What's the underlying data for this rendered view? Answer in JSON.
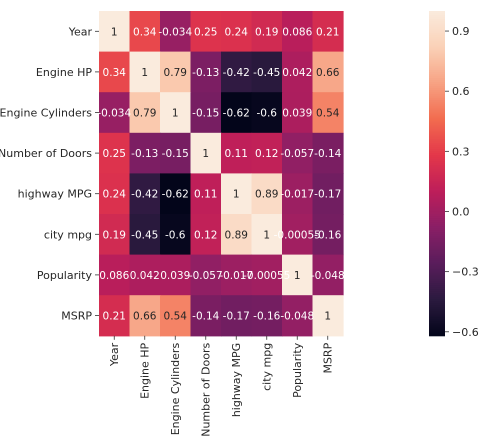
{
  "chart_data": {
    "type": "heatmap",
    "title": "",
    "xlabel": "",
    "ylabel": "",
    "rows": [
      "Year",
      "Engine HP",
      "Engine Cylinders",
      "Number of Doors",
      "highway MPG",
      "city mpg",
      "Popularity",
      "MSRP"
    ],
    "columns": [
      "Year",
      "Engine HP",
      "Engine Cylinders",
      "Number of Doors",
      "highway MPG",
      "city mpg",
      "Popularity",
      "MSRP"
    ],
    "values": [
      [
        1,
        0.34,
        -0.034,
        0.25,
        0.24,
        0.19,
        0.086,
        0.21
      ],
      [
        0.34,
        1,
        0.79,
        -0.13,
        -0.42,
        -0.45,
        0.042,
        0.66
      ],
      [
        -0.034,
        0.79,
        1,
        -0.15,
        -0.62,
        -0.6,
        0.039,
        0.54
      ],
      [
        0.25,
        -0.13,
        -0.15,
        1,
        0.11,
        0.12,
        -0.057,
        -0.14
      ],
      [
        0.24,
        -0.42,
        -0.62,
        0.11,
        1,
        0.89,
        -0.017,
        -0.17
      ],
      [
        0.19,
        -0.45,
        -0.6,
        0.12,
        0.89,
        1,
        -0.00055,
        -0.16
      ],
      [
        0.086,
        0.042,
        0.039,
        -0.057,
        -0.017,
        -0.00055,
        1,
        -0.048
      ],
      [
        0.21,
        0.66,
        0.54,
        -0.14,
        -0.17,
        -0.16,
        -0.048,
        1
      ]
    ],
    "annotations": [
      [
        "1",
        "0.34",
        "-0.034",
        "0.25",
        "0.24",
        "0.19",
        "0.086",
        "0.21"
      ],
      [
        "0.34",
        "1",
        "0.79",
        "-0.13",
        "-0.42",
        "-0.45",
        "0.042",
        "0.66"
      ],
      [
        "-0.034",
        "0.79",
        "1",
        "-0.15",
        "-0.62",
        "-0.6",
        "0.039",
        "0.54"
      ],
      [
        "0.25",
        "-0.13",
        "-0.15",
        "1",
        "0.11",
        "0.12",
        "-0.057",
        "-0.14"
      ],
      [
        "0.24",
        "-0.42",
        "-0.62",
        "0.11",
        "1",
        "0.89",
        "-0.017",
        "-0.17"
      ],
      [
        "0.19",
        "-0.45",
        "-0.6",
        "0.12",
        "0.89",
        "1",
        "-0.00055",
        "-0.16"
      ],
      [
        "0.086",
        "0.042",
        "0.039",
        "-0.057",
        "-0.017",
        "-0.00055",
        "1",
        "-0.048"
      ],
      [
        "0.21",
        "0.66",
        "0.54",
        "-0.14",
        "-0.17",
        "-0.16",
        "-0.048",
        "1"
      ]
    ],
    "colorbar": {
      "range": [
        -0.62,
        1
      ],
      "ticks": [
        -0.6,
        -0.3,
        0.0,
        0.3,
        0.6,
        0.9
      ],
      "tick_labels": [
        "−0.6",
        "−0.3",
        "0.0",
        "0.3",
        "0.6",
        "0.9"
      ]
    },
    "colormap": [
      "#03051a",
      "#2b1a3f",
      "#591d5b",
      "#8a1f66",
      "#bd1e5a",
      "#e3374a",
      "#f26b4f",
      "#f7a283",
      "#fad1b7",
      "#faebdd"
    ],
    "legend": "colorbar-right",
    "grid": false
  }
}
